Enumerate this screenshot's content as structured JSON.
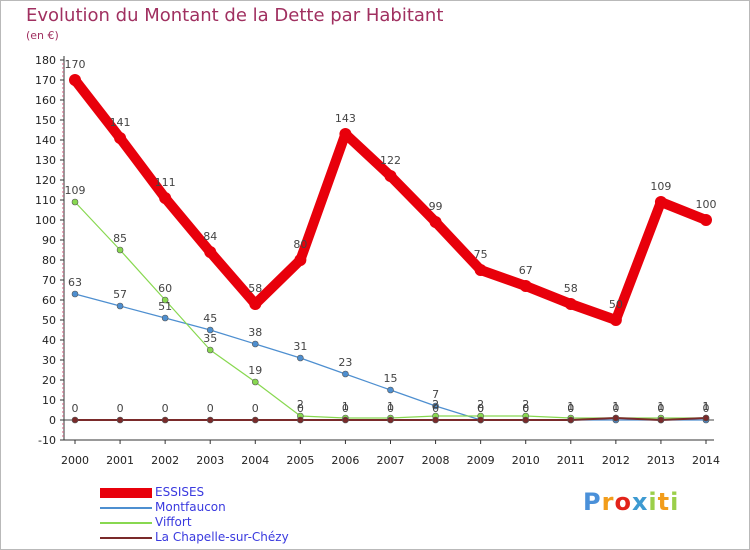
{
  "chart_data": {
    "type": "line",
    "title": "Evolution du Montant de la Dette par Habitant",
    "subtitle": "(en €)",
    "xlabel": "",
    "ylabel": "",
    "categories": [
      "2000",
      "2001",
      "2002",
      "2003",
      "2004",
      "2005",
      "2006",
      "2007",
      "2008",
      "2009",
      "2010",
      "2011",
      "2012",
      "2013",
      "2014"
    ],
    "ylim": [
      -10,
      180
    ],
    "yticks": [
      -10,
      0,
      10,
      20,
      30,
      40,
      50,
      60,
      70,
      80,
      90,
      100,
      110,
      120,
      130,
      140,
      150,
      160,
      170,
      180
    ],
    "series": [
      {
        "name": "ESSISES",
        "color": "#e8000b",
        "values": [
          170,
          141,
          111,
          84,
          58,
          80,
          143,
          122,
          99,
          75,
          67,
          58,
          50,
          109,
          100
        ],
        "labels": [
          "170",
          "141",
          "111",
          "84",
          "58",
          "80",
          "143",
          "122",
          "99",
          "75",
          "67",
          "58",
          "50",
          "109",
          "100"
        ]
      },
      {
        "name": "Montfaucon",
        "color": "#4e8fd0",
        "values": [
          63,
          57,
          51,
          45,
          38,
          31,
          23,
          15,
          7,
          0,
          0,
          0,
          0,
          0,
          0
        ],
        "labels": [
          "63",
          "57",
          "51",
          "45",
          "38",
          "31",
          "23",
          "15",
          "7",
          "0",
          "0",
          "0",
          "0",
          "0",
          "0"
        ]
      },
      {
        "name": "Viffort",
        "color": "#88d850",
        "values": [
          109,
          85,
          60,
          35,
          19,
          2,
          1,
          1,
          2,
          2,
          2,
          1,
          1,
          1,
          1
        ],
        "labels": [
          "109",
          "85",
          "60",
          "35",
          "19",
          "2",
          "1",
          "1",
          "2",
          "2",
          "2",
          "1",
          "1",
          "1",
          "1"
        ]
      },
      {
        "name": "La Chapelle-sur-Chézy",
        "color": "#7a2a2a",
        "values": [
          0,
          0,
          0,
          0,
          0,
          0,
          0,
          0,
          0,
          0,
          0,
          0,
          1,
          0,
          1
        ],
        "labels": [
          "0",
          "0",
          "0",
          "0",
          "0",
          "0",
          "0",
          "0",
          "0",
          "0",
          "0",
          "0",
          "1",
          "0",
          "1"
        ]
      }
    ]
  },
  "logo": {
    "letters": [
      "P",
      "r",
      "o",
      "x",
      "i",
      "t",
      "i"
    ],
    "colors": [
      "#4a90d9",
      "#f29d1b",
      "#e2231a",
      "#3d9ad1",
      "#9bcf4a",
      "#f29d1b",
      "#9bcf4a"
    ]
  }
}
